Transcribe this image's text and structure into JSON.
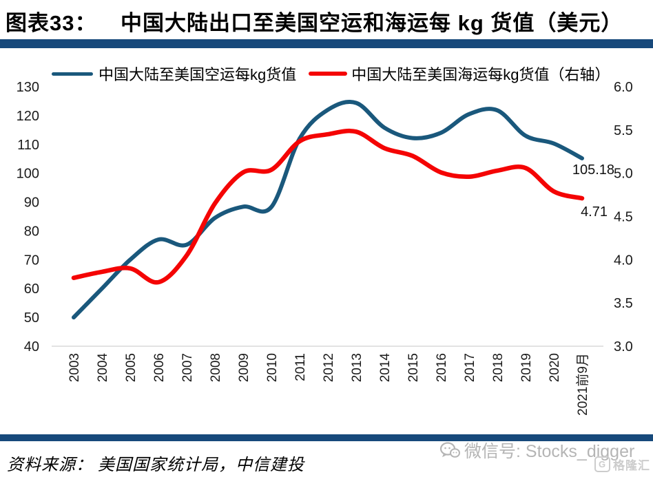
{
  "header": {
    "figure_label": "图表33：",
    "title": "中国大陆出口至美国空运和海运每 kg 货值（美元）"
  },
  "legend": {
    "air_label": "中国大陆至美国空运每kg货值",
    "sea_label": "中国大陆至美国海运每kg货值（右轴）"
  },
  "chart_data": {
    "type": "line",
    "title": "中国大陆出口至美国空运和海运每 kg 货值（美元）",
    "categories": [
      "2003",
      "2004",
      "2005",
      "2006",
      "2007",
      "2008",
      "2009",
      "2010",
      "2011",
      "2012",
      "2013",
      "2014",
      "2015",
      "2016",
      "2017",
      "2018",
      "2019",
      "2020",
      "2021前9月"
    ],
    "series": [
      {
        "name": "中国大陆至美国空运每kg货值",
        "axis": "left",
        "color": "#1A587C",
        "values": [
          50,
          60,
          70,
          77,
          75.2,
          84.5,
          88.4,
          88.3,
          112,
          122,
          124.4,
          115.8,
          112.2,
          114,
          120.5,
          121.8,
          113,
          110.3,
          105.18
        ]
      },
      {
        "name": "中国大陆至美国海运每kg货值（右轴）",
        "axis": "right",
        "color": "#F40404",
        "values": [
          3.79,
          3.86,
          3.9,
          3.74,
          4.05,
          4.65,
          5.01,
          5.04,
          5.37,
          5.45,
          5.48,
          5.29,
          5.2,
          5.01,
          4.96,
          5.03,
          5.06,
          4.79,
          4.71
        ]
      }
    ],
    "left_axis": {
      "min": 40,
      "max": 130,
      "tick_labels": [
        "130",
        "120",
        "110",
        "100",
        "90",
        "80",
        "70",
        "60",
        "50",
        "40"
      ]
    },
    "right_axis": {
      "min": 3.0,
      "max": 6.0,
      "tick_labels": [
        "6.0",
        "5.5",
        "5.0",
        "4.5",
        "4.0",
        "3.5",
        "3.0"
      ]
    },
    "grid": "off",
    "legend_position": "top",
    "end_labels": {
      "air": "105.18",
      "sea": "4.71"
    }
  },
  "footer": {
    "source": "资料来源： 美国国家统计局，中信建投",
    "watermark_text": "微信号: Stocks_digger",
    "logo_letter": "G",
    "logo_text": "格隆汇"
  },
  "colors": {
    "divider_bar": "#17497B",
    "air_line": "#1A587C",
    "sea_line": "#F40404",
    "axis_line": "#D9D9D9",
    "tick_text": "#1a1a1a"
  }
}
